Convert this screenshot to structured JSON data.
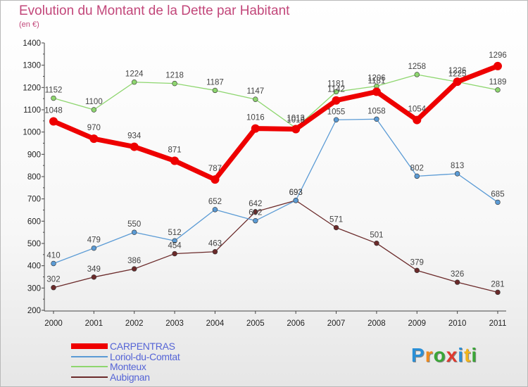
{
  "title": "Evolution du Montant de la Dette par Habitant",
  "subtitle": "(en €)",
  "brand": {
    "text": "Proxiti",
    "letters": [
      {
        "ch": "P",
        "color": "#2a8fd6"
      },
      {
        "ch": "r",
        "color": "#f08a1c"
      },
      {
        "ch": "o",
        "color": "#3aa637"
      },
      {
        "ch": "x",
        "color": "#e03a2f"
      },
      {
        "ch": "i",
        "color": "#2a8fd6"
      },
      {
        "ch": "t",
        "color": "#f0b41c"
      },
      {
        "ch": "i",
        "color": "#3aa637"
      }
    ]
  },
  "chart_data": {
    "type": "line",
    "title": "Evolution du Montant de la Dette par Habitant",
    "ylabel": "(en €)",
    "xlabel": "",
    "categories": [
      "2000",
      "2001",
      "2002",
      "2003",
      "2004",
      "2005",
      "2006",
      "2007",
      "2008",
      "2009",
      "2010",
      "2011"
    ],
    "ylim": [
      200,
      1400
    ],
    "yticks": [
      200,
      300,
      400,
      500,
      600,
      700,
      800,
      900,
      1000,
      1100,
      1200,
      1300,
      1400
    ],
    "grid": false,
    "legend": "bottom-left",
    "series": [
      {
        "name": "CARPENTRAS",
        "color": "#ee0000",
        "values": [
          1048,
          970,
          934,
          871,
          787,
          1016,
          1013,
          1142,
          1181,
          1054,
          1226,
          1296
        ]
      },
      {
        "name": "Loriol-du-Comtat",
        "color": "#5b9bd5",
        "values": [
          410,
          479,
          550,
          512,
          652,
          602,
          693,
          1055,
          1058,
          802,
          813,
          685
        ]
      },
      {
        "name": "Monteux",
        "color": "#8ed66f",
        "values": [
          1152,
          1100,
          1224,
          1218,
          1187,
          1147,
          1018,
          1181,
          1206,
          1258,
          1225,
          1189
        ]
      },
      {
        "name": "Aubignan",
        "color": "#6b2a2a",
        "values": [
          302,
          349,
          386,
          454,
          463,
          642,
          693,
          571,
          501,
          379,
          326,
          281
        ]
      }
    ]
  }
}
